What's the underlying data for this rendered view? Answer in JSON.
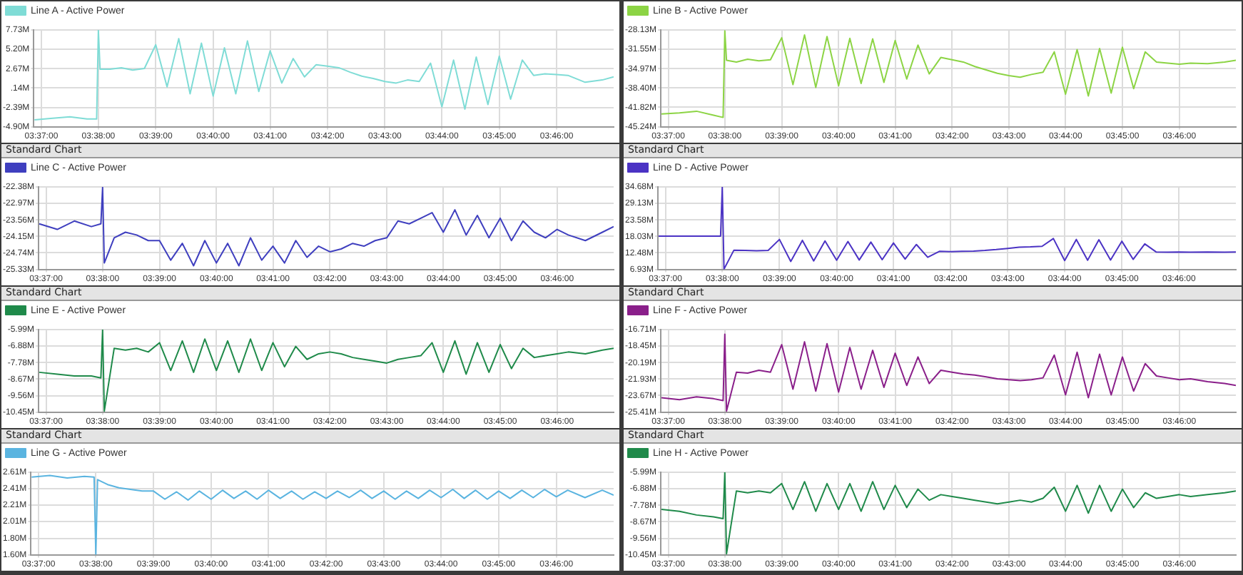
{
  "chart_data": [
    {
      "type": "line",
      "marker": "none",
      "line_style": "solid",
      "grid": true,
      "legend": "top left",
      "xlim": [
        3.6145,
        3.7833
      ],
      "xticks": [
        {
          "value": 3.6167,
          "label": "03:37:00"
        },
        {
          "value": 3.6333,
          "label": "03:38:00"
        },
        {
          "value": 3.65,
          "label": "03:39:00"
        },
        {
          "value": 3.6667,
          "label": "03:40:00"
        },
        {
          "value": 3.6833,
          "label": "03:41:00"
        },
        {
          "value": 3.7,
          "label": "03:42:00"
        },
        {
          "value": 3.7167,
          "label": "03:43:00"
        },
        {
          "value": 3.7333,
          "label": "03:44:00"
        },
        {
          "value": 3.75,
          "label": "03:45:00"
        },
        {
          "value": 3.7667,
          "label": "03:46:00"
        }
      ],
      "ylim": [
        -4.9,
        7.73
      ],
      "yticks": [
        {
          "value": 7.73,
          "label": "7.73M"
        },
        {
          "value": 5.2,
          "label": "5.20M"
        },
        {
          "value": 2.67,
          "label": "2.67M"
        },
        {
          "value": 0.14,
          "label": ".14M"
        },
        {
          "value": -2.39,
          "label": "-2.39M"
        },
        {
          "value": -4.9,
          "label": "-4.90M"
        }
      ],
      "x": [
        3.6147,
        3.62,
        3.625,
        3.63,
        3.6328,
        3.6333,
        3.6338,
        3.6367,
        3.64,
        3.6433,
        3.6467,
        3.65,
        3.6533,
        3.6567,
        3.66,
        3.6633,
        3.6667,
        3.67,
        3.6733,
        3.6767,
        3.68,
        3.6833,
        3.6867,
        3.69,
        3.6933,
        3.6967,
        3.7,
        3.7033,
        3.7067,
        3.71,
        3.7133,
        3.7167,
        3.72,
        3.7233,
        3.7267,
        3.73,
        3.7333,
        3.7367,
        3.74,
        3.7433,
        3.7467,
        3.75,
        3.7533,
        3.7567,
        3.76,
        3.7633,
        3.7667,
        3.77,
        3.775,
        3.78,
        3.7833
      ],
      "series": [
        {
          "name": "Line A - Active Power",
          "color": "#7fdcd6",
          "values": [
            -4.0,
            -3.8,
            -3.6,
            -3.9,
            -3.9,
            7.7,
            2.6,
            2.6,
            2.8,
            2.5,
            2.7,
            5.8,
            0.3,
            6.6,
            -0.6,
            6.0,
            -0.9,
            5.4,
            -0.6,
            6.3,
            -0.3,
            5.0,
            0.8,
            4.0,
            1.6,
            3.2,
            3.0,
            2.8,
            2.2,
            1.7,
            1.4,
            1.0,
            0.8,
            1.2,
            1.0,
            3.4,
            -2.3,
            3.8,
            -2.6,
            4.2,
            -2.0,
            4.3,
            -1.3,
            3.8,
            1.8,
            2.0,
            1.9,
            1.8,
            0.9,
            1.2,
            1.6
          ]
        }
      ]
    },
    {
      "type": "line",
      "marker": "none",
      "line_style": "solid",
      "grid": true,
      "legend": "top left",
      "xlim": [
        3.6145,
        3.7833
      ],
      "xticks": [
        {
          "value": 3.6167,
          "label": "03:37:00"
        },
        {
          "value": 3.6333,
          "label": "03:38:00"
        },
        {
          "value": 3.65,
          "label": "03:39:00"
        },
        {
          "value": 3.6667,
          "label": "03:40:00"
        },
        {
          "value": 3.6833,
          "label": "03:41:00"
        },
        {
          "value": 3.7,
          "label": "03:42:00"
        },
        {
          "value": 3.7167,
          "label": "03:43:00"
        },
        {
          "value": 3.7333,
          "label": "03:44:00"
        },
        {
          "value": 3.75,
          "label": "03:45:00"
        },
        {
          "value": 3.7667,
          "label": "03:46:00"
        }
      ],
      "ylim": [
        -45.24,
        -28.13
      ],
      "yticks": [
        {
          "value": -28.13,
          "label": "-28.13M"
        },
        {
          "value": -31.55,
          "label": "-31.55M"
        },
        {
          "value": -34.97,
          "label": "-34.97M"
        },
        {
          "value": -38.4,
          "label": "-38.40M"
        },
        {
          "value": -41.82,
          "label": "-41.82M"
        },
        {
          "value": -45.24,
          "label": "-45.24M"
        }
      ],
      "x": [
        3.6147,
        3.62,
        3.625,
        3.63,
        3.6328,
        3.6333,
        3.6338,
        3.6367,
        3.64,
        3.6433,
        3.6467,
        3.65,
        3.6533,
        3.6567,
        3.66,
        3.6633,
        3.6667,
        3.67,
        3.6733,
        3.6767,
        3.68,
        3.6833,
        3.6867,
        3.69,
        3.6933,
        3.6967,
        3.7,
        3.7033,
        3.7067,
        3.71,
        3.7133,
        3.7167,
        3.72,
        3.7233,
        3.7267,
        3.73,
        3.7333,
        3.7367,
        3.74,
        3.7433,
        3.7467,
        3.75,
        3.7533,
        3.7567,
        3.76,
        3.7633,
        3.7667,
        3.77,
        3.775,
        3.78,
        3.7833
      ],
      "series": [
        {
          "name": "Line B - Active Power",
          "color": "#8cd444",
          "values": [
            -43.0,
            -42.8,
            -42.5,
            -43.2,
            -43.6,
            -28.3,
            -33.5,
            -33.8,
            -33.3,
            -33.6,
            -33.4,
            -29.5,
            -37.8,
            -29.0,
            -38.3,
            -29.3,
            -38.0,
            -29.6,
            -37.6,
            -29.7,
            -37.4,
            -30.0,
            -36.8,
            -30.8,
            -35.9,
            -33.0,
            -33.4,
            -33.8,
            -34.6,
            -35.2,
            -35.8,
            -36.2,
            -36.5,
            -36.0,
            -35.6,
            -32.0,
            -39.5,
            -31.6,
            -39.8,
            -31.4,
            -39.3,
            -31.2,
            -38.5,
            -32.0,
            -33.8,
            -34.0,
            -34.2,
            -34.0,
            -34.1,
            -33.8,
            -33.5
          ]
        }
      ]
    },
    {
      "type": "line",
      "subtitle": "Standard Chart",
      "marker": "none",
      "line_style": "solid",
      "grid": true,
      "legend": "top left",
      "xlim": [
        3.6145,
        3.7833
      ],
      "xticks": [
        {
          "value": 3.6167,
          "label": "03:37:00"
        },
        {
          "value": 3.6333,
          "label": "03:38:00"
        },
        {
          "value": 3.65,
          "label": "03:39:00"
        },
        {
          "value": 3.6667,
          "label": "03:40:00"
        },
        {
          "value": 3.6833,
          "label": "03:41:00"
        },
        {
          "value": 3.7,
          "label": "03:42:00"
        },
        {
          "value": 3.7167,
          "label": "03:43:00"
        },
        {
          "value": 3.7333,
          "label": "03:44:00"
        },
        {
          "value": 3.75,
          "label": "03:45:00"
        },
        {
          "value": 3.7667,
          "label": "03:46:00"
        }
      ],
      "ylim": [
        -25.33,
        -22.38
      ],
      "yticks": [
        {
          "value": -22.38,
          "label": "-22.38M"
        },
        {
          "value": -22.97,
          "label": "-22.97M"
        },
        {
          "value": -23.56,
          "label": "-23.56M"
        },
        {
          "value": -24.15,
          "label": "-24.15M"
        },
        {
          "value": -24.74,
          "label": "-24.74M"
        },
        {
          "value": -25.33,
          "label": "-25.33M"
        }
      ],
      "x": [
        3.6147,
        3.62,
        3.625,
        3.63,
        3.6328,
        3.6333,
        3.6338,
        3.6367,
        3.64,
        3.6433,
        3.6467,
        3.65,
        3.6533,
        3.6567,
        3.66,
        3.6633,
        3.6667,
        3.67,
        3.6733,
        3.6767,
        3.68,
        3.6833,
        3.6867,
        3.69,
        3.6933,
        3.6967,
        3.7,
        3.7033,
        3.7067,
        3.71,
        3.7133,
        3.7167,
        3.72,
        3.7233,
        3.7267,
        3.73,
        3.7333,
        3.7367,
        3.74,
        3.7433,
        3.7467,
        3.75,
        3.7533,
        3.7567,
        3.76,
        3.7633,
        3.7667,
        3.77,
        3.775,
        3.78,
        3.7833
      ],
      "series": [
        {
          "name": "Line C - Active Power",
          "color": "#3f3fbf",
          "values": [
            -23.7,
            -23.9,
            -23.6,
            -23.8,
            -23.7,
            -22.4,
            -25.1,
            -24.2,
            -24.0,
            -24.1,
            -24.3,
            -24.3,
            -25.0,
            -24.4,
            -25.2,
            -24.3,
            -25.1,
            -24.4,
            -25.2,
            -24.2,
            -25.0,
            -24.5,
            -25.1,
            -24.3,
            -24.9,
            -24.5,
            -24.7,
            -24.6,
            -24.4,
            -24.5,
            -24.3,
            -24.2,
            -23.6,
            -23.7,
            -23.5,
            -23.3,
            -24.0,
            -23.2,
            -24.1,
            -23.4,
            -24.2,
            -23.5,
            -24.3,
            -23.6,
            -24.0,
            -24.2,
            -23.9,
            -24.1,
            -24.3,
            -24.0,
            -23.8
          ]
        }
      ]
    },
    {
      "type": "line",
      "subtitle": "Standard Chart",
      "marker": "none",
      "line_style": "solid",
      "grid": true,
      "legend": "top left",
      "xlim": [
        3.6145,
        3.7833
      ],
      "xticks": [
        {
          "value": 3.6167,
          "label": "03:37:00"
        },
        {
          "value": 3.6333,
          "label": "03:38:00"
        },
        {
          "value": 3.65,
          "label": "03:39:00"
        },
        {
          "value": 3.6667,
          "label": "03:40:00"
        },
        {
          "value": 3.6833,
          "label": "03:41:00"
        },
        {
          "value": 3.7,
          "label": "03:42:00"
        },
        {
          "value": 3.7167,
          "label": "03:43:00"
        },
        {
          "value": 3.7333,
          "label": "03:44:00"
        },
        {
          "value": 3.75,
          "label": "03:45:00"
        },
        {
          "value": 3.7667,
          "label": "03:46:00"
        }
      ],
      "ylim": [
        6.93,
        34.68
      ],
      "yticks": [
        {
          "value": 34.68,
          "label": "34.68M"
        },
        {
          "value": 29.13,
          "label": "29.13M"
        },
        {
          "value": 23.58,
          "label": "23.58M"
        },
        {
          "value": 18.03,
          "label": "18.03M"
        },
        {
          "value": 12.48,
          "label": "12.48M"
        },
        {
          "value": 6.93,
          "label": "6.93M"
        }
      ],
      "x": [
        3.6147,
        3.62,
        3.625,
        3.63,
        3.6328,
        3.6333,
        3.6338,
        3.6367,
        3.64,
        3.6433,
        3.6467,
        3.65,
        3.6533,
        3.6567,
        3.66,
        3.6633,
        3.6667,
        3.67,
        3.6733,
        3.6767,
        3.68,
        3.6833,
        3.6867,
        3.69,
        3.6933,
        3.6967,
        3.7,
        3.7033,
        3.7067,
        3.71,
        3.7133,
        3.7167,
        3.72,
        3.7233,
        3.7267,
        3.73,
        3.7333,
        3.7367,
        3.74,
        3.7433,
        3.7467,
        3.75,
        3.7533,
        3.7567,
        3.76,
        3.7633,
        3.7667,
        3.77,
        3.775,
        3.78,
        3.7833
      ],
      "series": [
        {
          "name": "Line D - Active Power",
          "color": "#4b33c4",
          "values": [
            18.1,
            18.1,
            18.1,
            18.1,
            18.1,
            34.6,
            7.0,
            13.4,
            13.3,
            13.2,
            13.3,
            17.0,
            9.6,
            16.7,
            9.8,
            16.5,
            10.0,
            16.3,
            10.1,
            16.1,
            10.2,
            15.8,
            10.4,
            15.3,
            11.0,
            13.0,
            12.9,
            13.0,
            13.1,
            13.3,
            13.6,
            14.0,
            14.4,
            14.5,
            14.7,
            17.3,
            9.9,
            17.0,
            10.0,
            16.9,
            10.1,
            16.4,
            10.3,
            15.5,
            12.8,
            12.7,
            12.8,
            12.7,
            12.8,
            12.7,
            12.8
          ]
        }
      ]
    },
    {
      "type": "line",
      "subtitle": "Standard Chart",
      "marker": "none",
      "line_style": "solid",
      "grid": true,
      "legend": "top left",
      "xlim": [
        3.6145,
        3.7833
      ],
      "xticks": [
        {
          "value": 3.6167,
          "label": "03:37:00"
        },
        {
          "value": 3.6333,
          "label": "03:38:00"
        },
        {
          "value": 3.65,
          "label": "03:39:00"
        },
        {
          "value": 3.6667,
          "label": "03:40:00"
        },
        {
          "value": 3.6833,
          "label": "03:41:00"
        },
        {
          "value": 3.7,
          "label": "03:42:00"
        },
        {
          "value": 3.7167,
          "label": "03:43:00"
        },
        {
          "value": 3.7333,
          "label": "03:44:00"
        },
        {
          "value": 3.75,
          "label": "03:45:00"
        },
        {
          "value": 3.7667,
          "label": "03:46:00"
        }
      ],
      "ylim": [
        -10.45,
        -5.99
      ],
      "yticks": [
        {
          "value": -5.99,
          "label": "-5.99M"
        },
        {
          "value": -6.88,
          "label": "-6.88M"
        },
        {
          "value": -7.78,
          "label": "-7.78M"
        },
        {
          "value": -8.67,
          "label": "-8.67M"
        },
        {
          "value": -9.56,
          "label": "-9.56M"
        },
        {
          "value": -10.45,
          "label": "-10.45M"
        }
      ],
      "x": [
        3.6147,
        3.62,
        3.625,
        3.63,
        3.6328,
        3.6333,
        3.6338,
        3.6367,
        3.64,
        3.6433,
        3.6467,
        3.65,
        3.6533,
        3.6567,
        3.66,
        3.6633,
        3.6667,
        3.67,
        3.6733,
        3.6767,
        3.68,
        3.6833,
        3.6867,
        3.69,
        3.6933,
        3.6967,
        3.7,
        3.7033,
        3.7067,
        3.71,
        3.7133,
        3.7167,
        3.72,
        3.7233,
        3.7267,
        3.73,
        3.7333,
        3.7367,
        3.74,
        3.7433,
        3.7467,
        3.75,
        3.7533,
        3.7567,
        3.76,
        3.7633,
        3.7667,
        3.77,
        3.775,
        3.78,
        3.7833
      ],
      "series": [
        {
          "name": "Line E - Active Power",
          "color": "#1f8a4a",
          "values": [
            -8.3,
            -8.4,
            -8.5,
            -8.5,
            -8.6,
            -6.0,
            -10.4,
            -7.0,
            -7.1,
            -7.0,
            -7.2,
            -6.7,
            -8.2,
            -6.6,
            -8.3,
            -6.5,
            -8.2,
            -6.6,
            -8.3,
            -6.5,
            -8.2,
            -6.7,
            -8.0,
            -6.9,
            -7.6,
            -7.3,
            -7.2,
            -7.3,
            -7.5,
            -7.6,
            -7.7,
            -7.8,
            -7.6,
            -7.5,
            -7.4,
            -6.7,
            -8.3,
            -6.6,
            -8.4,
            -6.7,
            -8.3,
            -6.8,
            -8.1,
            -7.0,
            -7.5,
            -7.4,
            -7.3,
            -7.2,
            -7.3,
            -7.1,
            -7.0
          ]
        }
      ]
    },
    {
      "type": "line",
      "subtitle": "Standard Chart",
      "marker": "none",
      "line_style": "solid",
      "grid": true,
      "legend": "top left",
      "xlim": [
        3.6145,
        3.7833
      ],
      "xticks": [
        {
          "value": 3.6167,
          "label": "03:37:00"
        },
        {
          "value": 3.6333,
          "label": "03:38:00"
        },
        {
          "value": 3.65,
          "label": "03:39:00"
        },
        {
          "value": 3.6667,
          "label": "03:40:00"
        },
        {
          "value": 3.6833,
          "label": "03:41:00"
        },
        {
          "value": 3.7,
          "label": "03:42:00"
        },
        {
          "value": 3.7167,
          "label": "03:43:00"
        },
        {
          "value": 3.7333,
          "label": "03:44:00"
        },
        {
          "value": 3.75,
          "label": "03:45:00"
        },
        {
          "value": 3.7667,
          "label": "03:46:00"
        }
      ],
      "ylim": [
        -25.41,
        -16.71
      ],
      "yticks": [
        {
          "value": -16.71,
          "label": "-16.71M"
        },
        {
          "value": -18.45,
          "label": "-18.45M"
        },
        {
          "value": -20.19,
          "label": "-20.19M"
        },
        {
          "value": -21.93,
          "label": "-21.93M"
        },
        {
          "value": -23.67,
          "label": "-23.67M"
        },
        {
          "value": -25.41,
          "label": "-25.41M"
        }
      ],
      "x": [
        3.6147,
        3.62,
        3.625,
        3.63,
        3.6328,
        3.6333,
        3.6338,
        3.6367,
        3.64,
        3.6433,
        3.6467,
        3.65,
        3.6533,
        3.6567,
        3.66,
        3.6633,
        3.6667,
        3.67,
        3.6733,
        3.6767,
        3.68,
        3.6833,
        3.6867,
        3.69,
        3.6933,
        3.6967,
        3.7,
        3.7033,
        3.7067,
        3.71,
        3.7133,
        3.7167,
        3.72,
        3.7233,
        3.7267,
        3.73,
        3.7333,
        3.7367,
        3.74,
        3.7433,
        3.7467,
        3.75,
        3.7533,
        3.7567,
        3.76,
        3.7633,
        3.7667,
        3.77,
        3.775,
        3.78,
        3.7833
      ],
      "series": [
        {
          "name": "Line F - Active Power",
          "color": "#8a1f8a",
          "values": [
            -23.9,
            -24.1,
            -23.8,
            -24.0,
            -24.2,
            -17.2,
            -25.3,
            -21.2,
            -21.3,
            -21.0,
            -21.2,
            -18.3,
            -23.0,
            -18.0,
            -23.2,
            -18.2,
            -23.3,
            -18.6,
            -23.0,
            -18.9,
            -22.8,
            -19.2,
            -22.6,
            -19.6,
            -22.4,
            -21.0,
            -21.2,
            -21.4,
            -21.5,
            -21.7,
            -21.9,
            -22.0,
            -22.1,
            -22.0,
            -21.8,
            -19.4,
            -23.6,
            -19.1,
            -23.9,
            -19.3,
            -23.6,
            -19.6,
            -23.2,
            -20.3,
            -21.6,
            -21.8,
            -22.0,
            -21.9,
            -22.2,
            -22.4,
            -22.6
          ]
        }
      ]
    },
    {
      "type": "line",
      "subtitle": "Standard Chart",
      "marker": "none",
      "line_style": "solid",
      "grid": true,
      "legend": "top left",
      "xlim": [
        3.6145,
        3.7833
      ],
      "xticks": [
        {
          "value": 3.6167,
          "label": "03:37:00"
        },
        {
          "value": 3.6333,
          "label": "03:38:00"
        },
        {
          "value": 3.65,
          "label": "03:39:00"
        },
        {
          "value": 3.6667,
          "label": "03:40:00"
        },
        {
          "value": 3.6833,
          "label": "03:41:00"
        },
        {
          "value": 3.7,
          "label": "03:42:00"
        },
        {
          "value": 3.7167,
          "label": "03:43:00"
        },
        {
          "value": 3.7333,
          "label": "03:44:00"
        },
        {
          "value": 3.75,
          "label": "03:45:00"
        },
        {
          "value": 3.7667,
          "label": "03:46:00"
        }
      ],
      "ylim": [
        1.6,
        2.61
      ],
      "yticks": [
        {
          "value": 2.61,
          "label": "2.61M"
        },
        {
          "value": 2.41,
          "label": "2.41M"
        },
        {
          "value": 2.21,
          "label": "2.21M"
        },
        {
          "value": 2.01,
          "label": "2.01M"
        },
        {
          "value": 1.8,
          "label": "1.80M"
        },
        {
          "value": 1.6,
          "label": "1.60M"
        }
      ],
      "x": [
        3.6147,
        3.62,
        3.625,
        3.63,
        3.6328,
        3.6333,
        3.6338,
        3.6367,
        3.64,
        3.6433,
        3.6467,
        3.65,
        3.6533,
        3.6567,
        3.66,
        3.6633,
        3.6667,
        3.67,
        3.6733,
        3.6767,
        3.68,
        3.6833,
        3.6867,
        3.69,
        3.6933,
        3.6967,
        3.7,
        3.7033,
        3.7067,
        3.71,
        3.7133,
        3.7167,
        3.72,
        3.7233,
        3.7267,
        3.73,
        3.7333,
        3.7367,
        3.74,
        3.7433,
        3.7467,
        3.75,
        3.7533,
        3.7567,
        3.76,
        3.7633,
        3.7667,
        3.77,
        3.775,
        3.78,
        3.7833
      ],
      "series": [
        {
          "name": "Line G - Active Power",
          "color": "#5ab4e0",
          "values": [
            2.55,
            2.57,
            2.54,
            2.56,
            2.55,
            1.6,
            2.52,
            2.46,
            2.42,
            2.4,
            2.38,
            2.38,
            2.28,
            2.37,
            2.27,
            2.38,
            2.28,
            2.39,
            2.29,
            2.38,
            2.28,
            2.39,
            2.29,
            2.38,
            2.28,
            2.37,
            2.29,
            2.38,
            2.3,
            2.39,
            2.29,
            2.38,
            2.28,
            2.38,
            2.29,
            2.39,
            2.3,
            2.4,
            2.29,
            2.39,
            2.28,
            2.38,
            2.29,
            2.39,
            2.3,
            2.4,
            2.31,
            2.39,
            2.3,
            2.39,
            2.33
          ]
        }
      ]
    },
    {
      "type": "line",
      "subtitle": "Standard Chart",
      "marker": "none",
      "line_style": "solid",
      "grid": true,
      "legend": "top left",
      "xlim": [
        3.6145,
        3.7833
      ],
      "xticks": [
        {
          "value": 3.6167,
          "label": "03:37:00"
        },
        {
          "value": 3.6333,
          "label": "03:38:00"
        },
        {
          "value": 3.65,
          "label": "03:39:00"
        },
        {
          "value": 3.6667,
          "label": "03:40:00"
        },
        {
          "value": 3.6833,
          "label": "03:41:00"
        },
        {
          "value": 3.7,
          "label": "03:42:00"
        },
        {
          "value": 3.7167,
          "label": "03:43:00"
        },
        {
          "value": 3.7333,
          "label": "03:44:00"
        },
        {
          "value": 3.75,
          "label": "03:45:00"
        },
        {
          "value": 3.7667,
          "label": "03:46:00"
        }
      ],
      "ylim": [
        -10.45,
        -5.99
      ],
      "yticks": [
        {
          "value": -5.99,
          "label": "-5.99M"
        },
        {
          "value": -6.88,
          "label": "-6.88M"
        },
        {
          "value": -7.78,
          "label": "-7.78M"
        },
        {
          "value": -8.67,
          "label": "-8.67M"
        },
        {
          "value": -9.56,
          "label": "-9.56M"
        },
        {
          "value": -10.45,
          "label": "-10.45M"
        }
      ],
      "x": [
        3.6147,
        3.62,
        3.625,
        3.63,
        3.6328,
        3.6333,
        3.6338,
        3.6367,
        3.64,
        3.6433,
        3.6467,
        3.65,
        3.6533,
        3.6567,
        3.66,
        3.6633,
        3.6667,
        3.67,
        3.6733,
        3.6767,
        3.68,
        3.6833,
        3.6867,
        3.69,
        3.6933,
        3.6967,
        3.7,
        3.7033,
        3.7067,
        3.71,
        3.7133,
        3.7167,
        3.72,
        3.7233,
        3.7267,
        3.73,
        3.7333,
        3.7367,
        3.74,
        3.7433,
        3.7467,
        3.75,
        3.7533,
        3.7567,
        3.76,
        3.7633,
        3.7667,
        3.77,
        3.775,
        3.78,
        3.7833
      ],
      "series": [
        {
          "name": "Line H - Active Power",
          "color": "#1f8a4a",
          "values": [
            -8.0,
            -8.1,
            -8.3,
            -8.4,
            -8.5,
            -6.0,
            -10.4,
            -7.0,
            -7.1,
            -7.0,
            -7.1,
            -6.6,
            -8.0,
            -6.5,
            -8.1,
            -6.6,
            -8.0,
            -6.6,
            -8.1,
            -6.5,
            -8.0,
            -6.7,
            -7.9,
            -6.9,
            -7.5,
            -7.2,
            -7.3,
            -7.4,
            -7.5,
            -7.6,
            -7.7,
            -7.6,
            -7.5,
            -7.6,
            -7.4,
            -6.8,
            -8.1,
            -6.7,
            -8.2,
            -6.7,
            -8.1,
            -6.9,
            -7.9,
            -7.1,
            -7.4,
            -7.3,
            -7.2,
            -7.3,
            -7.2,
            -7.1,
            -7.0
          ]
        }
      ]
    }
  ]
}
